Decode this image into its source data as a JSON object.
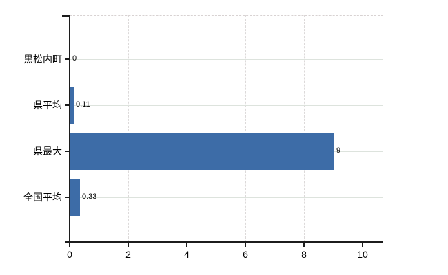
{
  "chart_data": {
    "type": "bar",
    "orientation": "horizontal",
    "title": "",
    "categories": [
      "黒松内町",
      "県平均",
      "県最大",
      "全国平均"
    ],
    "values": [
      0,
      0.11,
      9,
      0.33
    ],
    "value_labels": [
      "0",
      "0.11",
      "9",
      "0.33"
    ],
    "x_ticks": [
      0,
      2,
      4,
      6,
      8,
      10
    ],
    "x_tick_labels": [
      "0",
      "2",
      "4",
      "6",
      "8",
      "10"
    ],
    "xlim": [
      0,
      10.7
    ],
    "grid": true,
    "legend": false,
    "colors": {
      "bar": "#3d6ca7",
      "h_gridline": "#dde3dd",
      "v_gridline": "#dcd9d9",
      "top_border": "#d8d2d2",
      "axis": "#1c1c1c",
      "text": "#000000",
      "background": "#ffffff"
    }
  }
}
